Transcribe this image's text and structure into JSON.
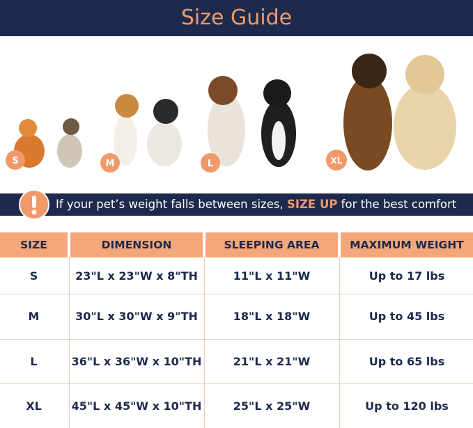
{
  "header": {
    "title": "Size Guide"
  },
  "size_badges": [
    "S",
    "M",
    "L",
    "XL"
  ],
  "notice": {
    "before": "If your pet’s weight falls between sizes, ",
    "emphasis": "SIZE UP",
    "after": " for the best comfort"
  },
  "table": {
    "columns": [
      "SIZE",
      "DIMENSION",
      "SLEEPING AREA",
      "MAXIMUM WEIGHT"
    ],
    "rows": [
      [
        "S",
        "23\"L x 23\"W x 8\"TH",
        "11\"L x 11\"W",
        "Up to 17 lbs"
      ],
      [
        "M",
        "30\"L x 30\"W x 9\"TH",
        "18\"L x 18\"W",
        "Up to 45 lbs"
      ],
      [
        "L",
        "36\"L x 36\"W x 10\"TH",
        "21\"L x 21\"W",
        "Up to 65 lbs"
      ],
      [
        "XL",
        "45\"L x 45\"W x 10\"TH",
        "25\"L x 25\"W",
        "Up to 120 lbs"
      ]
    ]
  }
}
